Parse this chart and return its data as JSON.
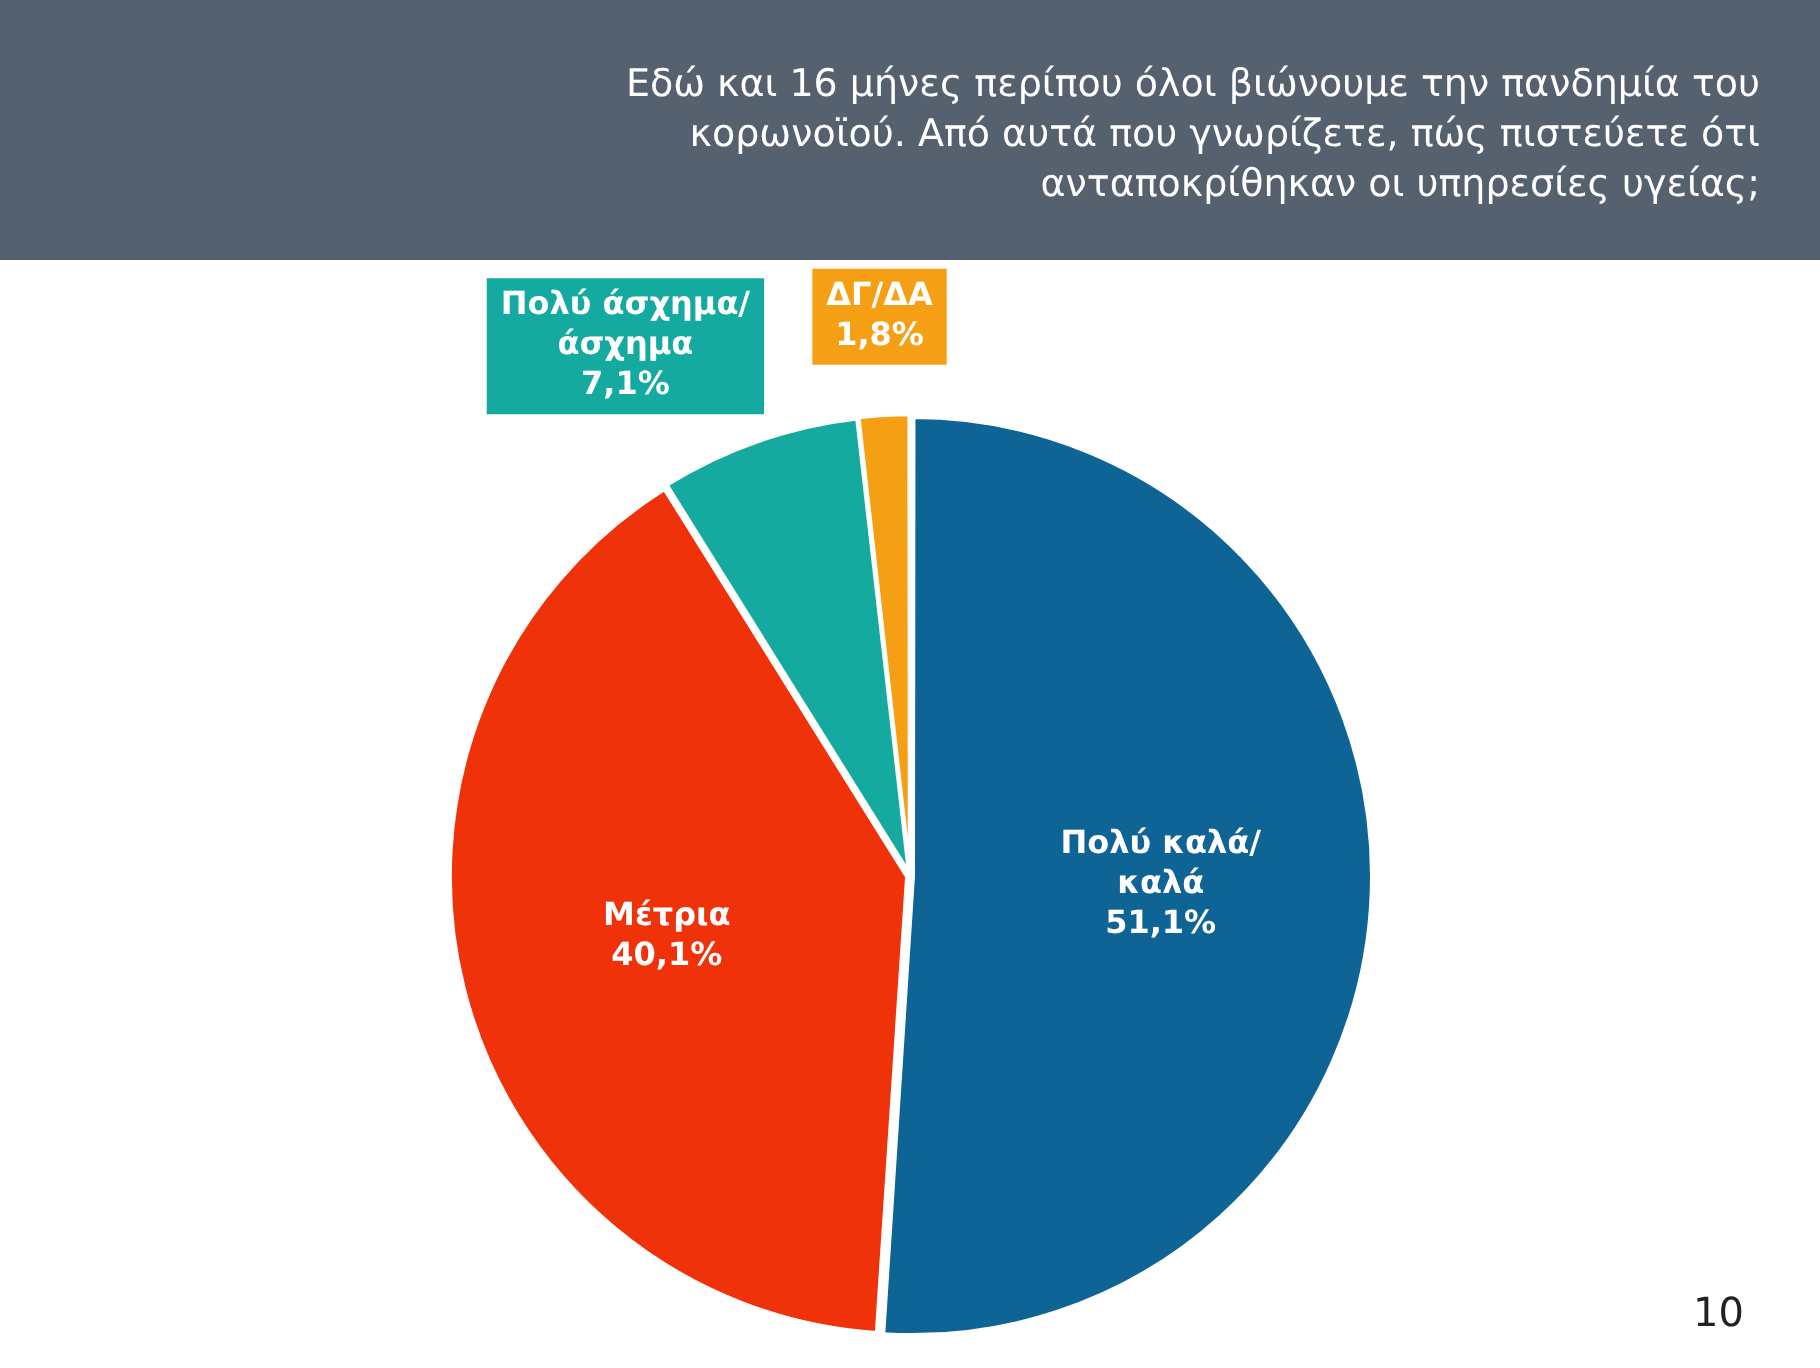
{
  "chart_data": {
    "type": "pie",
    "title": "Εδώ και 16 μήνες περίπου όλοι βιώνουμε την πανδημία του κορωνοϊού. Από αυτά που γνωρίζετε, πώς πιστεύετε ότι ανταποκρίθηκαν οι υπηρεσίες υγείας;",
    "categories": [
      "Πολύ καλά/καλά",
      "Μέτρια",
      "Πολύ άσχημα/άσχημα",
      "ΔΓ/ΔΑ"
    ],
    "values": [
      51.1,
      40.1,
      7.1,
      1.8
    ],
    "colors": [
      "#0f6496",
      "#f0320a",
      "#14aaa0",
      "#f5a014"
    ],
    "value_labels": [
      "51,1%",
      "40,1%",
      "7,1%",
      "1,8%"
    ],
    "legend": false,
    "annotations": [
      "10"
    ]
  }
}
